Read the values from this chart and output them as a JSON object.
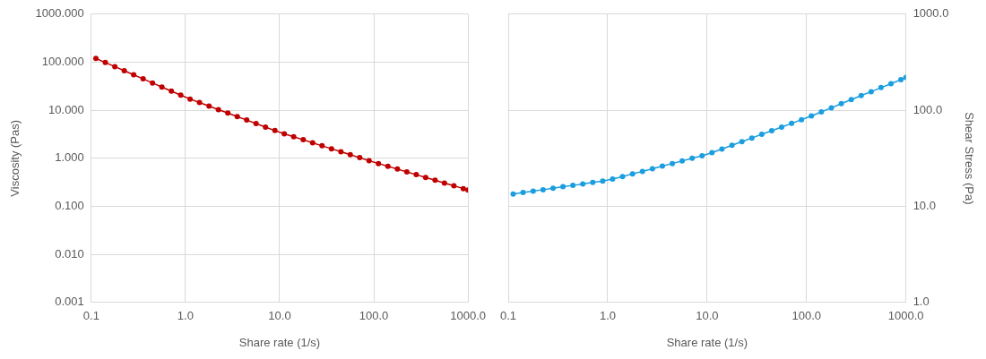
{
  "chart_data": [
    {
      "type": "line",
      "xlabel": "Share rate (1/s)",
      "ylabel": "Viscosity (Pas)",
      "log": "xy",
      "grid": true,
      "legend": false,
      "marker": "circle",
      "line_style": "solid",
      "x": [
        0.112,
        0.141,
        0.178,
        0.224,
        0.282,
        0.355,
        0.447,
        0.562,
        0.708,
        0.891,
        1.12,
        1.41,
        1.78,
        2.24,
        2.82,
        3.55,
        4.47,
        5.62,
        7.08,
        8.91,
        11.2,
        14.1,
        17.8,
        22.4,
        28.2,
        35.5,
        44.7,
        56.2,
        70.8,
        89.1,
        112,
        141,
        178,
        224,
        282,
        355,
        447,
        562,
        708,
        891,
        1000
      ],
      "xlim": [
        0.1,
        1000
      ],
      "xticks": [
        0.1,
        {
          "value": 1,
          "label": "1.0"
        },
        {
          "value": 10,
          "label": "10.0"
        },
        {
          "value": 100,
          "label": "100.0"
        },
        {
          "value": 1000,
          "label": "1000.0"
        }
      ],
      "ylim": [
        0.001,
        1000
      ],
      "yticks": [
        {
          "value": 0.001,
          "label": "0.001"
        },
        {
          "value": 0.01,
          "label": "0.010"
        },
        {
          "value": 0.1,
          "label": "0.100"
        },
        {
          "value": 1,
          "label": "1.000"
        },
        {
          "value": 10,
          "label": "10.000"
        },
        {
          "value": 100,
          "label": "100.000"
        },
        {
          "value": 1000,
          "label": "1000.000"
        }
      ],
      "series": [
        {
          "color": "#c00000",
          "values": [
            120,
            98.4,
            80.8,
            66.5,
            54.7,
            45.0,
            37.0,
            30.4,
            25.0,
            20.6,
            17.1,
            14.5,
            12.2,
            10.3,
            8.74,
            7.39,
            6.25,
            5.28,
            4.46,
            3.77,
            3.23,
            2.8,
            2.43,
            2.1,
            1.82,
            1.58,
            1.37,
            1.19,
            1.03,
            0.893,
            0.778,
            0.681,
            0.596,
            0.521,
            0.456,
            0.399,
            0.349,
            0.305,
            0.267,
            0.234,
            0.219
          ]
        }
      ]
    },
    {
      "type": "line",
      "xlabel": "Share rate (1/s)",
      "ylabel": "Shear Stress (Pa)",
      "log": "xy",
      "grid": true,
      "legend": false,
      "marker": "circle",
      "line_style": "solid",
      "x": [
        0.112,
        0.141,
        0.178,
        0.224,
        0.282,
        0.355,
        0.447,
        0.562,
        0.708,
        0.891,
        1.12,
        1.41,
        1.78,
        2.24,
        2.82,
        3.55,
        4.47,
        5.62,
        7.08,
        8.91,
        11.2,
        14.1,
        17.8,
        22.4,
        28.2,
        35.5,
        44.7,
        56.2,
        70.8,
        89.1,
        112,
        141,
        178,
        224,
        282,
        355,
        447,
        562,
        708,
        891,
        1000
      ],
      "xlim": [
        0.1,
        1000
      ],
      "xticks": [
        0.1,
        {
          "value": 1,
          "label": "1.0"
        },
        {
          "value": 10,
          "label": "10.0"
        },
        {
          "value": 100,
          "label": "100.0"
        },
        {
          "value": 1000,
          "label": "1000.0"
        }
      ],
      "ylim": [
        1,
        1000
      ],
      "yticks": [
        {
          "value": 1,
          "label": "1.0"
        },
        {
          "value": 10,
          "label": "10.0"
        },
        {
          "value": 100,
          "label": "100.0"
        },
        {
          "value": 1000,
          "label": "1000.0"
        }
      ],
      "series": [
        {
          "color": "#1a9ee0",
          "values": [
            13.4,
            13.9,
            14.4,
            14.9,
            15.4,
            16.0,
            16.5,
            17.1,
            17.7,
            18.3,
            19.2,
            20.4,
            21.8,
            23.1,
            24.6,
            26.2,
            27.9,
            29.7,
            31.6,
            33.6,
            36.2,
            39.5,
            43.2,
            47.1,
            51.4,
            56.1,
            61.2,
            66.8,
            72.9,
            79.6,
            87.3,
            96.2,
            106,
            117,
            129,
            142,
            156,
            172,
            189,
            208,
            219
          ]
        }
      ]
    }
  ]
}
